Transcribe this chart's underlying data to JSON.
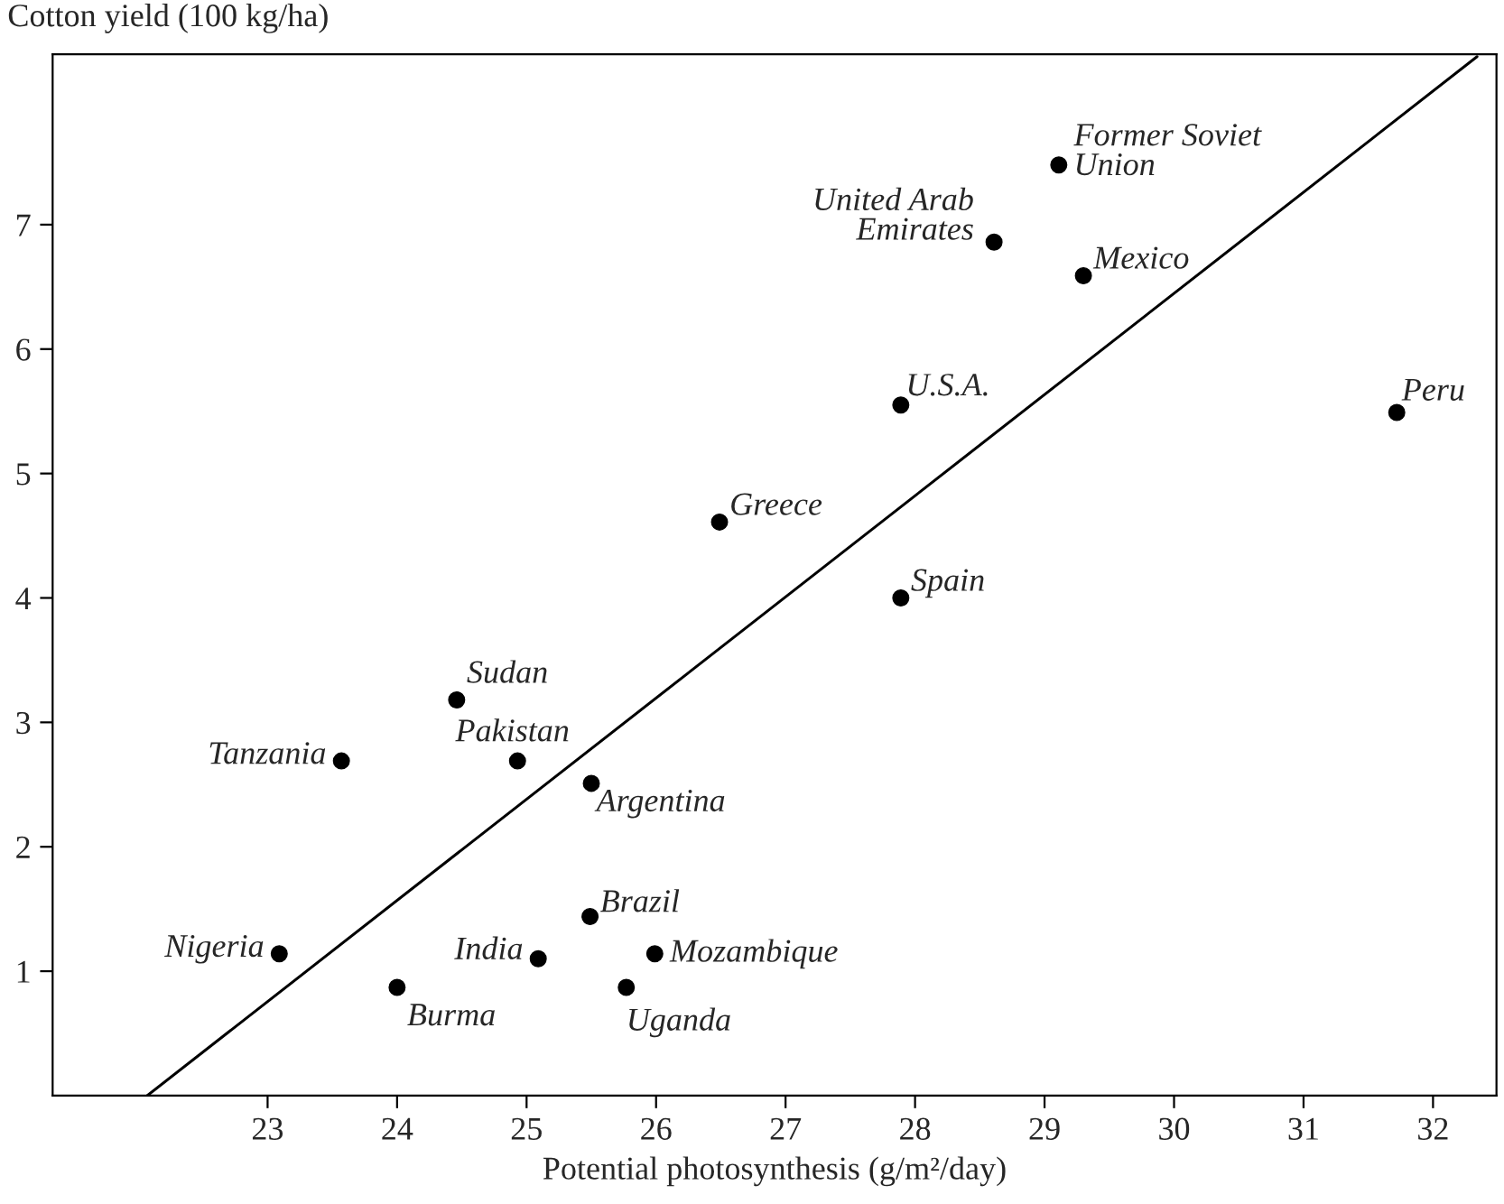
{
  "chart_data": {
    "type": "scatter",
    "xlabel": "Potential photosynthesis (g/m²/day)",
    "ylabel": "Cotton yield (100 kg/ha)",
    "xlim": [
      21.34,
      32.49
    ],
    "ylim": [
      0,
      8.37
    ],
    "xticks": [
      23,
      24,
      25,
      26,
      27,
      28,
      29,
      30,
      31,
      32
    ],
    "yticks": [
      1,
      2,
      3,
      4,
      5,
      6,
      7
    ],
    "grid": false,
    "legend": false,
    "marker": "circle",
    "series": [
      {
        "type": "scatter",
        "color": "#000000",
        "x": [
          23.09,
          24.0,
          23.57,
          24.46,
          24.93,
          25.5,
          25.09,
          25.49,
          25.77,
          25.99,
          26.49,
          27.89,
          27.89,
          28.61,
          29.11,
          29.3,
          31.72
        ],
        "values": [
          1.14,
          0.87,
          2.69,
          3.18,
          2.69,
          2.51,
          1.1,
          1.44,
          0.87,
          1.14,
          4.61,
          4.0,
          5.55,
          6.86,
          7.48,
          6.59,
          5.49
        ]
      },
      {
        "type": "line",
        "marker": "none",
        "color": "#000000",
        "x": [
          22.07,
          32.34
        ],
        "values": [
          0,
          8.35
        ]
      }
    ],
    "annotations": [
      {
        "text": "Nigeria",
        "x": 23.09,
        "y": 1.14
      },
      {
        "text": "Burma",
        "x": 24.0,
        "y": 0.87
      },
      {
        "text": "Tanzania",
        "x": 23.57,
        "y": 2.69
      },
      {
        "text": "Sudan",
        "x": 24.46,
        "y": 3.18
      },
      {
        "text": "Pakistan",
        "x": 24.93,
        "y": 2.69
      },
      {
        "text": "Argentina",
        "x": 25.5,
        "y": 2.51
      },
      {
        "text": "India",
        "x": 25.09,
        "y": 1.1
      },
      {
        "text": "Brazil",
        "x": 25.49,
        "y": 1.44
      },
      {
        "text": "Uganda",
        "x": 25.77,
        "y": 0.87
      },
      {
        "text": "Mozambique",
        "x": 25.99,
        "y": 1.14
      },
      {
        "text": "Greece",
        "x": 26.49,
        "y": 4.61
      },
      {
        "text": "Spain",
        "x": 27.89,
        "y": 4.0
      },
      {
        "text": "U.S.A.",
        "x": 27.89,
        "y": 5.55
      },
      {
        "text": "United Arab\nEmirates",
        "x": 28.61,
        "y": 6.86
      },
      {
        "text": "Former Soviet\nUnion",
        "x": 29.11,
        "y": 7.48
      },
      {
        "text": "Mexico",
        "x": 29.3,
        "y": 6.59
      },
      {
        "text": "Peru",
        "x": 31.72,
        "y": 5.49
      }
    ]
  }
}
